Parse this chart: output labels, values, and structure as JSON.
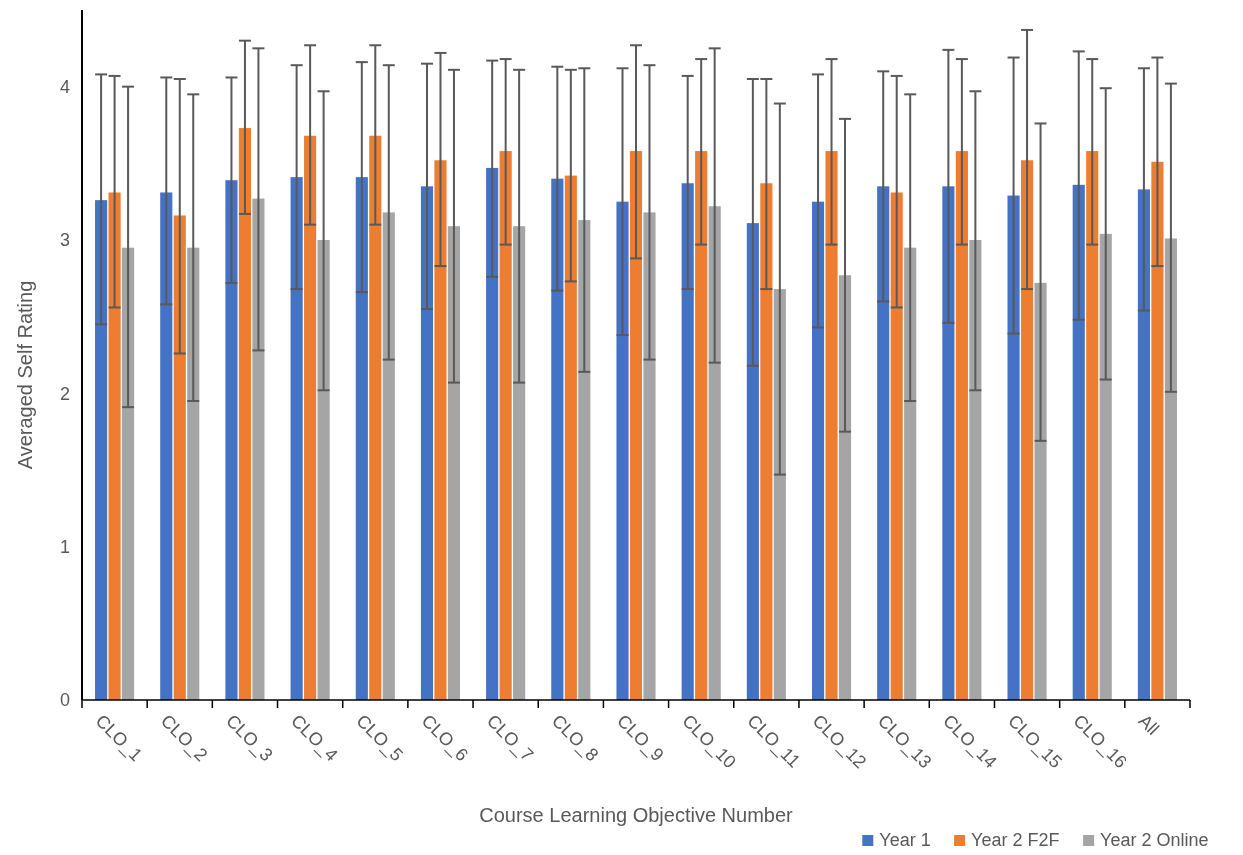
{
  "chart_data": {
    "type": "bar",
    "xlabel": "Course Learning Objective Number",
    "ylabel": "Averaged Self Rating",
    "categories": [
      "CLO_1",
      "CLO_2",
      "CLO_3",
      "CLO_4",
      "CLO_5",
      "CLO_6",
      "CLO_7",
      "CLO_8",
      "CLO_9",
      "CLO_10",
      "CLO_11",
      "CLO_12",
      "CLO_13",
      "CLO_14",
      "CLO_15",
      "CLO_16",
      "All"
    ],
    "series": [
      {
        "name": "Year 1",
        "color": "#4472c4",
        "values": [
          3.26,
          3.31,
          3.39,
          3.41,
          3.41,
          3.35,
          3.47,
          3.4,
          3.25,
          3.37,
          3.11,
          3.25,
          3.35,
          3.35,
          3.29,
          3.36,
          3.33
        ],
        "errors": [
          [
            2.45,
            4.08
          ],
          [
            2.58,
            4.06
          ],
          [
            2.72,
            4.06
          ],
          [
            2.68,
            4.14
          ],
          [
            2.66,
            4.16
          ],
          [
            2.55,
            4.15
          ],
          [
            2.76,
            4.17
          ],
          [
            2.67,
            4.13
          ],
          [
            2.38,
            4.12
          ],
          [
            2.68,
            4.07
          ],
          [
            2.18,
            4.05
          ],
          [
            2.43,
            4.08
          ],
          [
            2.6,
            4.1
          ],
          [
            2.46,
            4.24
          ],
          [
            2.39,
            4.19
          ],
          [
            2.48,
            4.23
          ],
          [
            2.54,
            4.12
          ]
        ]
      },
      {
        "name": "Year 2 F2F",
        "color": "#ed7d31",
        "values": [
          3.31,
          3.16,
          3.73,
          3.68,
          3.68,
          3.52,
          3.58,
          3.42,
          3.58,
          3.58,
          3.37,
          3.58,
          3.31,
          3.58,
          3.52,
          3.58,
          3.51
        ],
        "errors": [
          [
            2.56,
            4.07
          ],
          [
            2.26,
            4.05
          ],
          [
            3.17,
            4.3
          ],
          [
            3.1,
            4.27
          ],
          [
            3.1,
            4.27
          ],
          [
            2.83,
            4.22
          ],
          [
            2.97,
            4.18
          ],
          [
            2.73,
            4.11
          ],
          [
            2.88,
            4.27
          ],
          [
            2.97,
            4.18
          ],
          [
            2.68,
            4.05
          ],
          [
            2.97,
            4.18
          ],
          [
            2.56,
            4.07
          ],
          [
            2.97,
            4.18
          ],
          [
            2.68,
            4.37
          ],
          [
            2.97,
            4.18
          ],
          [
            2.83,
            4.19
          ]
        ]
      },
      {
        "name": "Year 2 Online",
        "color": "#a5a5a5",
        "values": [
          2.95,
          2.95,
          3.27,
          3.0,
          3.18,
          3.09,
          3.09,
          3.13,
          3.18,
          3.22,
          2.68,
          2.77,
          2.95,
          3.0,
          2.72,
          3.04,
          3.01
        ],
        "errors": [
          [
            1.91,
            4.0
          ],
          [
            1.95,
            3.95
          ],
          [
            2.28,
            4.25
          ],
          [
            2.02,
            3.97
          ],
          [
            2.22,
            4.14
          ],
          [
            2.07,
            4.11
          ],
          [
            2.07,
            4.11
          ],
          [
            2.14,
            4.12
          ],
          [
            2.22,
            4.14
          ],
          [
            2.2,
            4.25
          ],
          [
            1.47,
            3.89
          ],
          [
            1.75,
            3.79
          ],
          [
            1.95,
            3.95
          ],
          [
            2.02,
            3.97
          ],
          [
            1.69,
            3.76
          ],
          [
            2.09,
            3.99
          ],
          [
            2.01,
            4.02
          ]
        ]
      }
    ],
    "ylim": [
      0,
      4.5
    ],
    "yticks": [
      0,
      1,
      2,
      3,
      4
    ],
    "legend": "bottom right"
  }
}
